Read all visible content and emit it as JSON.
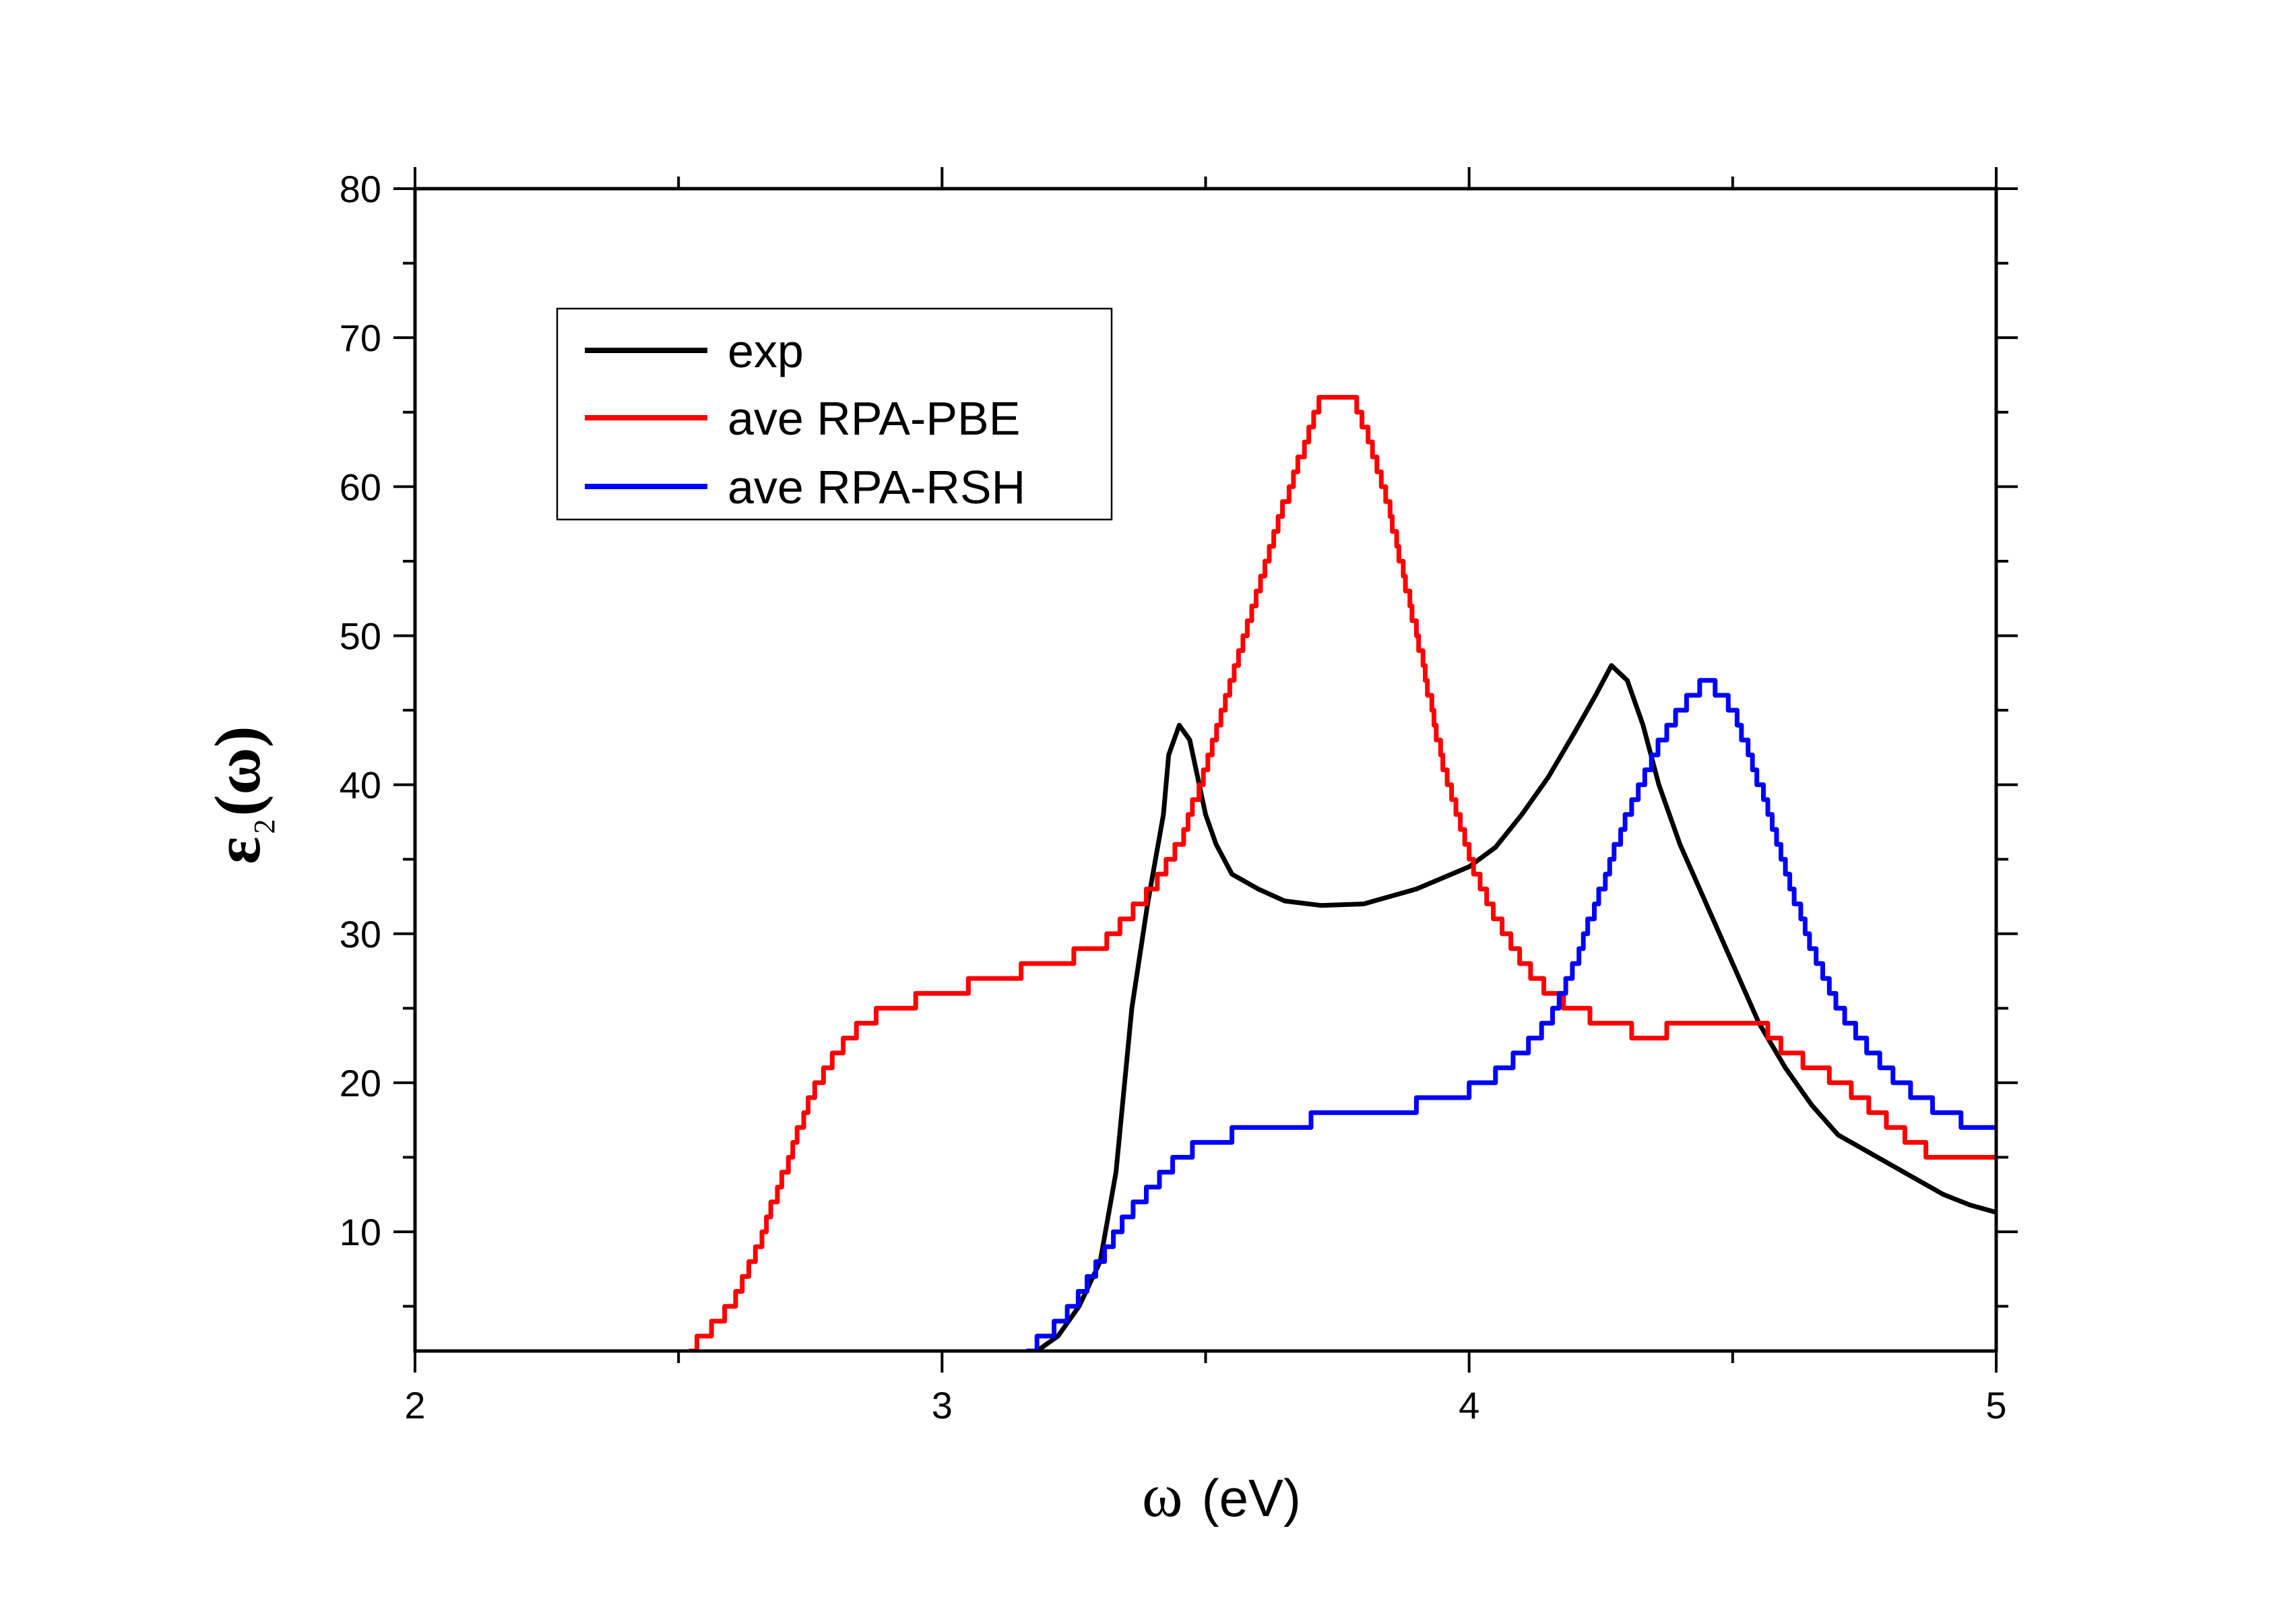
{
  "chart_data": {
    "type": "line",
    "xlabel_symbol": "ω",
    "xlabel_unit": "(eV)",
    "ylabel_symbol": "ε",
    "ylabel_sub": "2",
    "ylabel_arg": "(ω)",
    "xlim": [
      2,
      5
    ],
    "ylim": [
      2,
      80
    ],
    "x_major_ticks": [
      2,
      3,
      4,
      5
    ],
    "x_minor_step": 0.5,
    "y_major_ticks": [
      10,
      20,
      30,
      40,
      50,
      60,
      70,
      80
    ],
    "y_minor_step": 5,
    "legend_position": "upper-left",
    "series": [
      {
        "name": "exp",
        "color": "#000000",
        "points": [
          [
            3.18,
            2
          ],
          [
            3.22,
            3
          ],
          [
            3.26,
            5
          ],
          [
            3.3,
            8
          ],
          [
            3.33,
            14
          ],
          [
            3.36,
            25
          ],
          [
            3.39,
            32
          ],
          [
            3.42,
            38
          ],
          [
            3.43,
            42
          ],
          [
            3.45,
            44
          ],
          [
            3.47,
            43
          ],
          [
            3.5,
            38
          ],
          [
            3.52,
            36
          ],
          [
            3.55,
            34
          ],
          [
            3.6,
            33
          ],
          [
            3.65,
            32.2
          ],
          [
            3.72,
            31.9
          ],
          [
            3.8,
            32
          ],
          [
            3.9,
            33
          ],
          [
            4.0,
            34.5
          ],
          [
            4.05,
            35.8
          ],
          [
            4.1,
            38
          ],
          [
            4.15,
            40.5
          ],
          [
            4.2,
            43.5
          ],
          [
            4.24,
            46
          ],
          [
            4.27,
            48
          ],
          [
            4.3,
            47
          ],
          [
            4.33,
            44
          ],
          [
            4.36,
            40
          ],
          [
            4.4,
            36
          ],
          [
            4.45,
            32
          ],
          [
            4.5,
            28
          ],
          [
            4.55,
            24
          ],
          [
            4.6,
            21
          ],
          [
            4.65,
            18.5
          ],
          [
            4.7,
            16.5
          ],
          [
            4.75,
            15.5
          ],
          [
            4.8,
            14.5
          ],
          [
            4.85,
            13.5
          ],
          [
            4.9,
            12.5
          ],
          [
            4.95,
            11.8
          ],
          [
            5.0,
            11.3
          ]
        ]
      },
      {
        "name": "ave RPA-PBE",
        "color": "#ff0000",
        "points": [
          [
            2.52,
            2
          ],
          [
            2.55,
            3
          ],
          [
            2.6,
            5
          ],
          [
            2.65,
            9
          ],
          [
            2.7,
            14
          ],
          [
            2.75,
            19
          ],
          [
            2.8,
            22
          ],
          [
            2.85,
            24
          ],
          [
            2.9,
            25
          ],
          [
            3.0,
            26
          ],
          [
            3.1,
            27
          ],
          [
            3.2,
            28
          ],
          [
            3.3,
            29
          ],
          [
            3.35,
            31
          ],
          [
            3.4,
            33
          ],
          [
            3.45,
            36
          ],
          [
            3.5,
            41
          ],
          [
            3.55,
            47
          ],
          [
            3.6,
            53
          ],
          [
            3.65,
            59
          ],
          [
            3.7,
            64
          ],
          [
            3.72,
            66
          ],
          [
            3.78,
            66
          ],
          [
            3.8,
            64
          ],
          [
            3.85,
            58
          ],
          [
            3.9,
            50
          ],
          [
            3.95,
            41
          ],
          [
            4.0,
            35
          ],
          [
            4.05,
            31
          ],
          [
            4.1,
            28
          ],
          [
            4.15,
            26
          ],
          [
            4.2,
            25
          ],
          [
            4.25,
            24
          ],
          [
            4.35,
            23
          ],
          [
            4.4,
            24
          ],
          [
            4.55,
            24
          ],
          [
            4.6,
            22
          ],
          [
            4.7,
            20
          ],
          [
            4.8,
            17
          ],
          [
            4.88,
            15
          ],
          [
            5.0,
            15
          ]
        ]
      },
      {
        "name": "ave RPA-RSH",
        "color": "#0000ff",
        "points": [
          [
            3.16,
            2
          ],
          [
            3.2,
            3
          ],
          [
            3.25,
            5
          ],
          [
            3.3,
            8
          ],
          [
            3.35,
            11
          ],
          [
            3.4,
            13
          ],
          [
            3.45,
            15
          ],
          [
            3.5,
            16
          ],
          [
            3.55,
            16.5
          ],
          [
            3.6,
            17
          ],
          [
            3.7,
            17.5
          ],
          [
            3.8,
            18
          ],
          [
            3.9,
            18.5
          ],
          [
            4.0,
            19.5
          ],
          [
            4.05,
            20.5
          ],
          [
            4.1,
            22
          ],
          [
            4.15,
            24
          ],
          [
            4.2,
            28
          ],
          [
            4.25,
            33
          ],
          [
            4.3,
            38
          ],
          [
            4.35,
            42
          ],
          [
            4.4,
            45
          ],
          [
            4.45,
            47
          ],
          [
            4.5,
            45
          ],
          [
            4.55,
            40
          ],
          [
            4.6,
            34
          ],
          [
            4.65,
            29
          ],
          [
            4.7,
            25
          ],
          [
            4.75,
            22.5
          ],
          [
            4.8,
            20.5
          ],
          [
            4.85,
            19
          ],
          [
            4.9,
            18
          ],
          [
            4.95,
            17.2
          ],
          [
            5.0,
            17
          ]
        ]
      }
    ]
  }
}
